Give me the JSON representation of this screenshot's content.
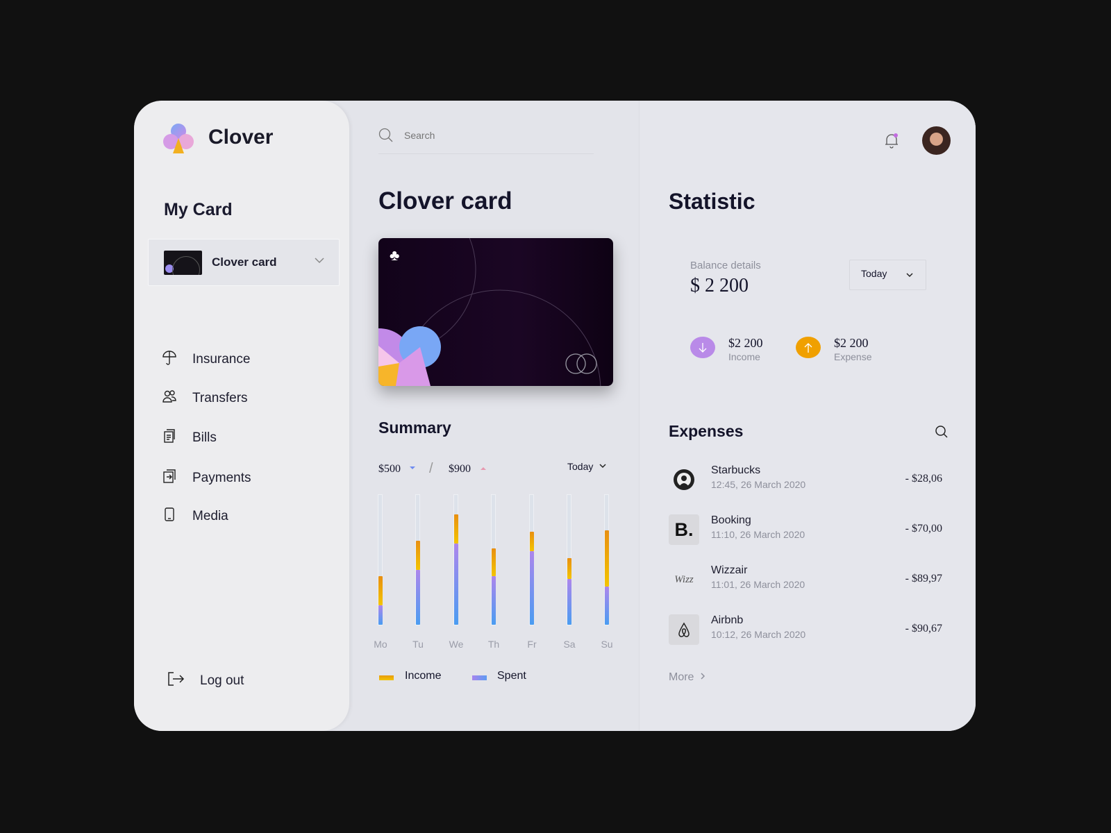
{
  "brand": {
    "name": "Clover"
  },
  "sidebar": {
    "section_title": "My Card",
    "card_selector": {
      "label": "Clover card"
    },
    "items": [
      {
        "label": "Insurance",
        "icon": "umbrella-icon"
      },
      {
        "label": "Transfers",
        "icon": "users-icon"
      },
      {
        "label": "Bills",
        "icon": "bills-icon"
      },
      {
        "label": "Payments",
        "icon": "payments-icon"
      },
      {
        "label": "Media",
        "icon": "phone-icon"
      }
    ],
    "logout": "Log out"
  },
  "header": {
    "search_placeholder": "Search"
  },
  "main": {
    "title": "Clover card",
    "summary": {
      "title": "Summary",
      "spent_value": "$500",
      "separator": "/",
      "income_value": "$900",
      "period": "Today",
      "legend": {
        "income": "Income",
        "spent": "Spent"
      }
    }
  },
  "chart_data": {
    "type": "bar",
    "stacked": true,
    "categories": [
      "Mo",
      "Tu",
      "We",
      "Th",
      "Fr",
      "Sa",
      "Su"
    ],
    "series": [
      {
        "name": "Spent",
        "unit": "percent",
        "values": [
          15,
          42,
          62,
          37,
          56,
          35,
          29
        ]
      },
      {
        "name": "Income",
        "unit": "percent",
        "values": [
          22,
          22,
          22,
          21,
          15,
          16,
          43
        ]
      }
    ],
    "ylim": [
      0,
      100
    ],
    "grid": false,
    "legend": "bottom",
    "colors": {
      "income": "#f0b000",
      "spent": "#a785ee"
    }
  },
  "statistic": {
    "title": "Statistic",
    "balance_label": "Balance details",
    "balance_value": "$ 2 200",
    "period": "Today",
    "income": {
      "value": "$2 200",
      "label": "Income",
      "color": "#b98ae8"
    },
    "expense": {
      "value": "$2 200",
      "label": "Expense",
      "color": "#f0a000"
    }
  },
  "expenses": {
    "title": "Expenses",
    "items": [
      {
        "name": "Starbucks",
        "time": "12:45, 26 March 2020",
        "amount": "- $28,06"
      },
      {
        "name": "Booking",
        "time": "11:10, 26 March 2020",
        "amount": "- $70,00",
        "logo_text": "B."
      },
      {
        "name": "Wizzair",
        "time": "11:01, 26 March 2020",
        "amount": "- $89,97",
        "logo_text": "Wizz"
      },
      {
        "name": "Airbnb",
        "time": "10:12, 26 March 2020",
        "amount": "- $90,67"
      }
    ],
    "more": "More"
  }
}
